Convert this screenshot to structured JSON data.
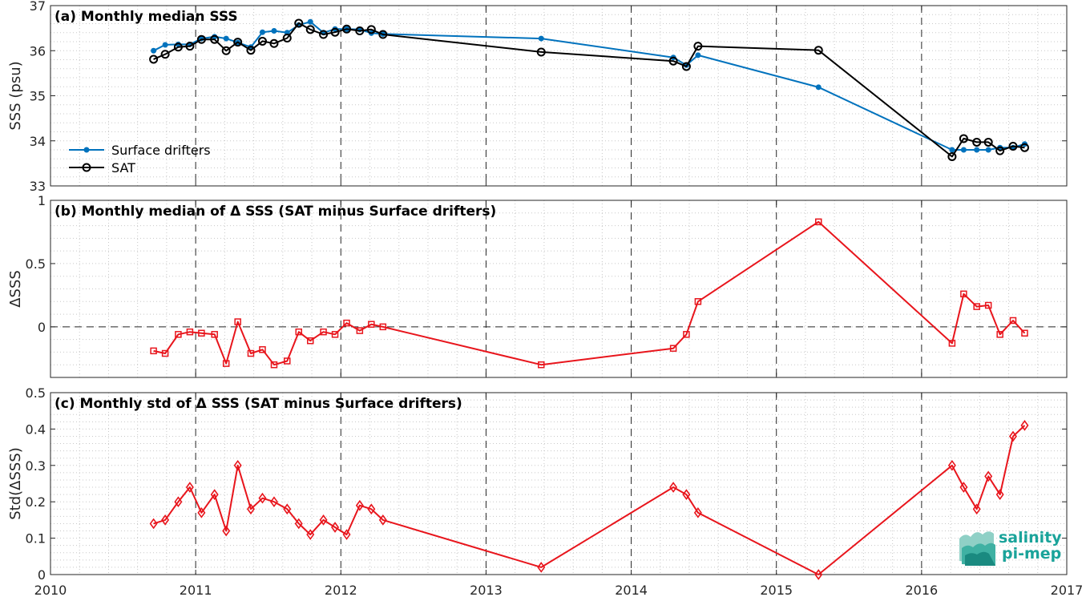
{
  "chart_data": [
    {
      "type": "line",
      "title": "(a) Monthly median SSS",
      "xlabel": "",
      "ylabel": "SSS (psu)",
      "xlim": [
        2010,
        2017
      ],
      "ylim": [
        33,
        37
      ],
      "xticks": [
        "2010",
        "2011",
        "2012",
        "2013",
        "2014",
        "2015",
        "2016",
        "2017"
      ],
      "yticks": [
        "33",
        "34",
        "35",
        "36",
        "37"
      ],
      "grid": "dotted minor grid, dashed vertical lines at years",
      "legend_position": "lower-left",
      "series": [
        {
          "name": "Surface drifters",
          "color": "#0072bd",
          "marker": "dot",
          "x": [
            2010.71,
            2010.79,
            2010.88,
            2010.96,
            2011.04,
            2011.13,
            2011.21,
            2011.29,
            2011.38,
            2011.46,
            2011.54,
            2011.63,
            2011.71,
            2011.79,
            2011.88,
            2011.96,
            2012.04,
            2012.13,
            2012.21,
            2012.29,
            2013.38,
            2014.29,
            2014.38,
            2014.46,
            2015.29,
            2016.21,
            2016.29,
            2016.38,
            2016.46,
            2016.54,
            2016.63,
            2016.71
          ],
          "y": [
            36.0,
            36.13,
            36.14,
            36.14,
            36.27,
            36.31,
            36.27,
            36.18,
            36.08,
            36.41,
            36.44,
            36.4,
            36.57,
            36.64,
            36.4,
            36.48,
            36.48,
            36.47,
            36.39,
            36.37,
            36.27,
            35.85,
            35.68,
            35.9,
            35.19,
            33.8,
            33.8,
            33.8,
            33.8,
            33.85,
            33.85,
            33.93
          ]
        },
        {
          "name": "SAT",
          "color": "#000000",
          "marker": "circle",
          "x": [
            2010.71,
            2010.79,
            2010.88,
            2010.96,
            2011.04,
            2011.13,
            2011.21,
            2011.29,
            2011.38,
            2011.46,
            2011.54,
            2011.63,
            2011.71,
            2011.79,
            2011.88,
            2011.96,
            2012.04,
            2012.13,
            2012.21,
            2012.29,
            2013.38,
            2014.29,
            2014.38,
            2014.46,
            2015.29,
            2016.21,
            2016.29,
            2016.38,
            2016.46,
            2016.54,
            2016.63,
            2016.71
          ],
          "y": [
            35.81,
            35.92,
            36.08,
            36.1,
            36.25,
            36.25,
            36.0,
            36.19,
            36.01,
            36.21,
            36.16,
            36.28,
            36.61,
            36.47,
            36.36,
            36.41,
            36.48,
            36.44,
            36.47,
            36.36,
            35.97,
            35.77,
            35.65,
            36.1,
            36.01,
            33.65,
            34.05,
            33.97,
            33.97,
            33.78,
            33.88,
            33.85
          ]
        }
      ]
    },
    {
      "type": "line",
      "title": "(b) Monthly median of Δ SSS (SAT minus Surface drifters)",
      "xlabel": "",
      "ylabel": "ΔSSS",
      "xlim": [
        2010,
        2017
      ],
      "ylim": [
        -0.4,
        1
      ],
      "yticks": [
        "0",
        "0.5",
        "1"
      ],
      "grid": "dotted minor grid, dashed vertical lines at years, dashed zero line",
      "series": [
        {
          "color": "#e8151c",
          "marker": "square",
          "x": [
            2010.71,
            2010.79,
            2010.88,
            2010.96,
            2011.04,
            2011.13,
            2011.21,
            2011.29,
            2011.38,
            2011.46,
            2011.54,
            2011.63,
            2011.71,
            2011.79,
            2011.88,
            2011.96,
            2012.04,
            2012.13,
            2012.21,
            2012.29,
            2013.38,
            2014.29,
            2014.38,
            2014.46,
            2015.29,
            2016.21,
            2016.29,
            2016.38,
            2016.46,
            2016.54,
            2016.63,
            2016.71
          ],
          "y": [
            -0.19,
            -0.21,
            -0.06,
            -0.04,
            -0.05,
            -0.06,
            -0.29,
            0.04,
            -0.21,
            -0.18,
            -0.3,
            -0.27,
            -0.04,
            -0.11,
            -0.04,
            -0.06,
            0.03,
            -0.03,
            0.02,
            0.0,
            -0.3,
            -0.17,
            -0.06,
            0.2,
            0.83,
            -0.13,
            0.26,
            0.16,
            0.17,
            -0.06,
            0.05,
            -0.05
          ]
        }
      ]
    },
    {
      "type": "line",
      "title": "(c) Monthly std of Δ SSS (SAT minus Surface drifters)",
      "xlabel": "",
      "ylabel": "Std(ΔSSS)",
      "xlim": [
        2010,
        2017
      ],
      "ylim": [
        0,
        0.5
      ],
      "yticks": [
        "0",
        "0.1",
        "0.2",
        "0.3",
        "0.4",
        "0.5"
      ],
      "grid": "dotted minor grid, dashed vertical lines at years",
      "series": [
        {
          "color": "#e8151c",
          "marker": "diamond",
          "x": [
            2010.71,
            2010.79,
            2010.88,
            2010.96,
            2011.04,
            2011.13,
            2011.21,
            2011.29,
            2011.38,
            2011.46,
            2011.54,
            2011.63,
            2011.71,
            2011.79,
            2011.88,
            2011.96,
            2012.04,
            2012.13,
            2012.21,
            2012.29,
            2013.38,
            2014.29,
            2014.38,
            2014.46,
            2015.29,
            2016.21,
            2016.29,
            2016.38,
            2016.46,
            2016.54,
            2016.63,
            2016.71
          ],
          "y": [
            0.14,
            0.15,
            0.2,
            0.24,
            0.17,
            0.22,
            0.12,
            0.3,
            0.18,
            0.21,
            0.2,
            0.18,
            0.14,
            0.11,
            0.15,
            0.13,
            0.11,
            0.19,
            0.18,
            0.15,
            0.02,
            0.24,
            0.22,
            0.17,
            0.0,
            0.3,
            0.24,
            0.18,
            0.27,
            0.22,
            0.38,
            0.41
          ]
        }
      ]
    }
  ],
  "logo": {
    "line1": "salinity",
    "line2": "pi-mep",
    "color": "#1aa39a"
  }
}
